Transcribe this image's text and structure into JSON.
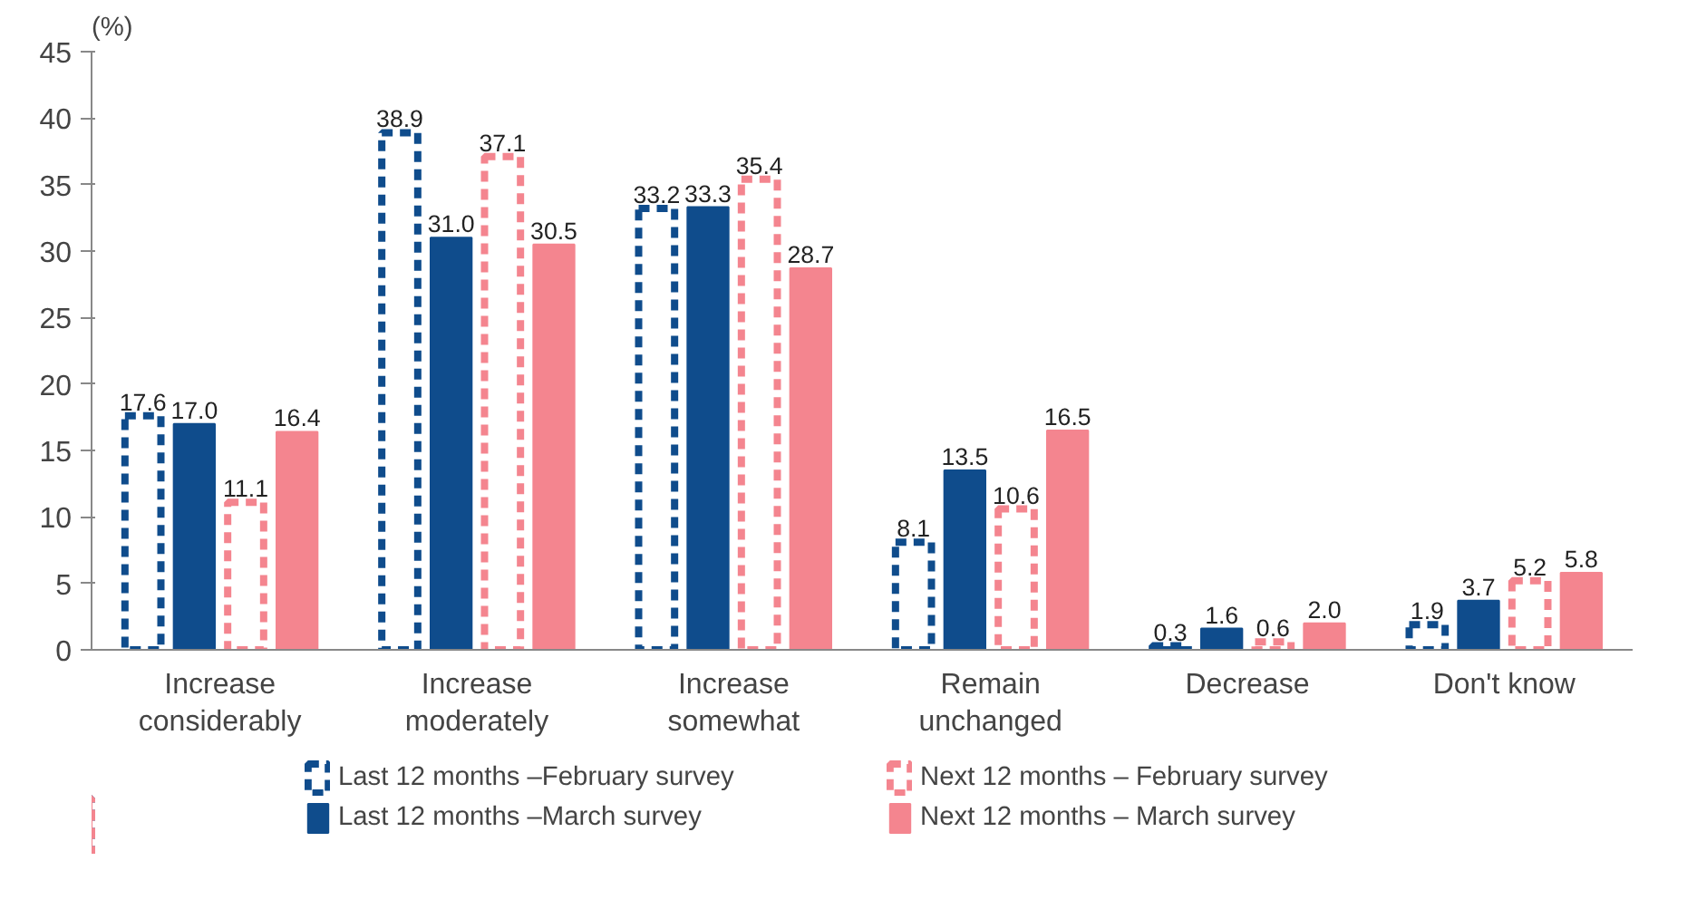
{
  "chart_data": {
    "type": "bar",
    "ylabel": "(%)",
    "categories": [
      "Increase\nconsiderably",
      "Increase\nmoderately",
      "Increase\nsomewhat",
      "Remain\nunchanged",
      "Decrease",
      "Don't know"
    ],
    "ylim": [
      0,
      45
    ],
    "yticks": [
      0,
      5,
      10,
      15,
      20,
      25,
      30,
      35,
      40,
      45
    ],
    "grid": false,
    "legend": "bottom",
    "data_labels": true,
    "series": [
      {
        "name": "Last 12 months –February survey",
        "color": "#0f4c8c",
        "line_style": "dashed",
        "values": [
          17.6,
          38.9,
          33.2,
          8.1,
          0.3,
          1.9
        ],
        "value_labels": [
          "17.6",
          "38.9",
          "33.2",
          "8.1",
          "0.3",
          "1.9"
        ]
      },
      {
        "name": "Last 12 months –March survey",
        "color": "#0f4c8c",
        "line_style": "solid",
        "values": [
          17.0,
          31.0,
          33.3,
          13.5,
          1.6,
          3.7
        ],
        "value_labels": [
          "17.0",
          "31.0",
          "33.3",
          "13.5",
          "1.6",
          "3.7"
        ]
      },
      {
        "name": "Next 12 months – February survey",
        "color": "#f4858f",
        "line_style": "dashed",
        "values": [
          11.1,
          37.1,
          35.4,
          10.6,
          0.6,
          5.2
        ],
        "value_labels": [
          "11.1",
          "37.1",
          "35.4",
          "10.6",
          "0.6",
          "5.2"
        ]
      },
      {
        "name": "Next 12 months – March survey",
        "color": "#f4858f",
        "line_style": "solid",
        "values": [
          16.4,
          30.5,
          28.7,
          16.5,
          2.0,
          5.8
        ],
        "value_labels": [
          "16.4",
          "30.5",
          "28.7",
          "16.5",
          "2.0",
          "5.8"
        ]
      }
    ]
  }
}
